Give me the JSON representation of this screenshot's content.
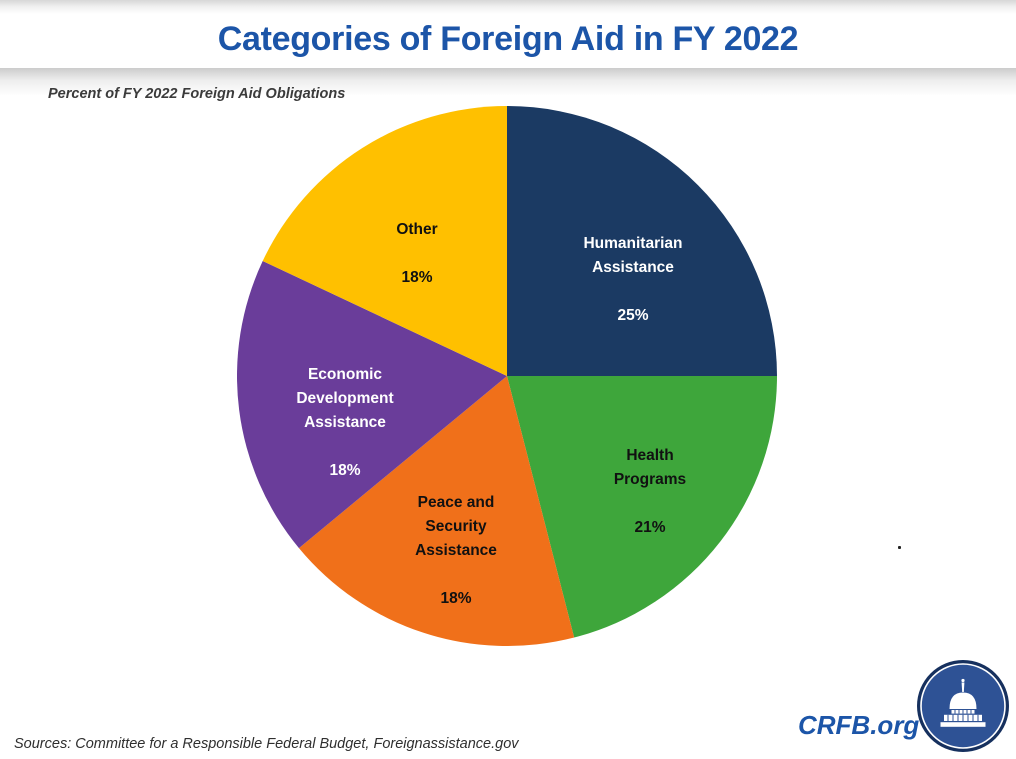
{
  "header": {
    "title": "Categories of Foreign Aid in FY 2022",
    "subtitle": "Percent of FY 2022 Foreign Aid Obligations"
  },
  "chart_data": {
    "type": "pie",
    "title": "Categories of Foreign Aid in FY 2022",
    "subtitle": "Percent of FY 2022 Foreign Aid Obligations",
    "units": "percent of FY 2022 foreign aid obligations",
    "start_angle_deg": 0,
    "direction": "clockwise",
    "legend": "none (labels inside slices)",
    "slices": [
      {
        "label": "Humanitarian\nAssistance",
        "value": 25,
        "pct_label": "25%",
        "color": "#1b3a63",
        "text_color": "#ffffff"
      },
      {
        "label": "Health\nPrograms",
        "value": 21,
        "pct_label": "21%",
        "color": "#3ea63b",
        "text_color": "#111111"
      },
      {
        "label": "Peace and\nSecurity\nAssistance",
        "value": 18,
        "pct_label": "18%",
        "color": "#f0701a",
        "text_color": "#111111"
      },
      {
        "label": "Economic\nDevelopment\nAssistance",
        "value": 18,
        "pct_label": "18%",
        "color": "#6a3d9a",
        "text_color": "#ffffff"
      },
      {
        "label": "Other",
        "value": 18,
        "pct_label": "18%",
        "color": "#ffc000",
        "text_color": "#111111"
      }
    ]
  },
  "footer": {
    "sources": "Sources: Committee for a Responsible Federal Budget, Foreignassistance.gov",
    "brand": "CRFB.org"
  },
  "colors": {
    "title_blue": "#1c55a8",
    "logo_ring": "#16305e",
    "logo_fill": "#2e5295",
    "logo_building": "#ffffff"
  }
}
